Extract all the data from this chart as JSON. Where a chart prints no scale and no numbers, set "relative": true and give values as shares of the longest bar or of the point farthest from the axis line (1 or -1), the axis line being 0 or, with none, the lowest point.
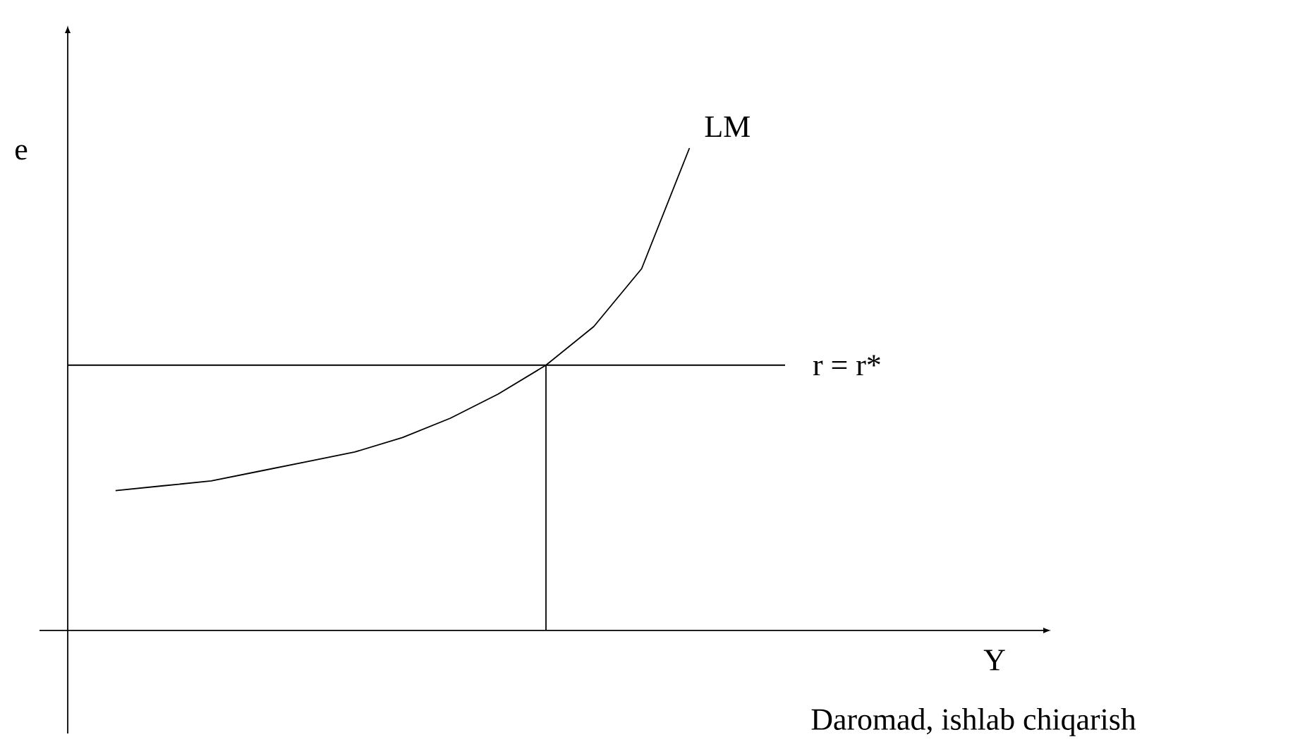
{
  "chart_data": {
    "type": "line",
    "relative": true,
    "tick_labels": false,
    "ylabel": "e",
    "annotations": [
      "Y",
      "Daromad, ishlab chiqarish"
    ],
    "categories": [
      null,
      null,
      null,
      null,
      null,
      null,
      null,
      null,
      null,
      null,
      null,
      null,
      null,
      null,
      null,
      null
    ],
    "series": [
      {
        "name": "LM",
        "color": "#000000",
        "values": [
          null,
          0.29,
          0.3,
          0.31,
          0.33,
          0.35,
          0.37,
          0.4,
          0.44,
          0.49,
          0.55,
          0.63,
          0.75,
          1.0,
          null,
          null
        ]
      },
      {
        "name": "r = r*",
        "color": "#000000",
        "values": [
          0.55,
          0.55,
          0.55,
          0.55,
          0.55,
          0.55,
          0.55,
          0.55,
          0.55,
          0.55,
          0.55,
          0.55,
          0.55,
          0.55,
          0.55,
          0.55
        ]
      }
    ]
  }
}
